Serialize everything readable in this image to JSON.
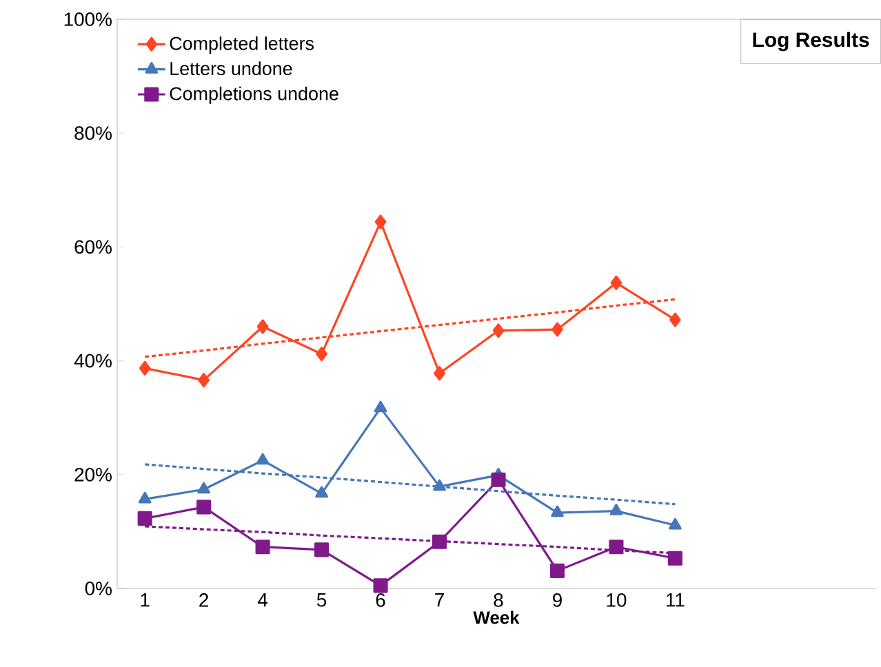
{
  "chart_data": {
    "type": "line",
    "title": "Log Results",
    "xlabel": "Week",
    "categories": [
      "1",
      "2",
      "4",
      "5",
      "6",
      "7",
      "8",
      "9",
      "10",
      "11"
    ],
    "ylim": [
      0,
      100
    ],
    "yticks": [
      {
        "value": 0,
        "label": "0%"
      },
      {
        "value": 20,
        "label": "20%"
      },
      {
        "value": 40,
        "label": "40%"
      },
      {
        "value": 60,
        "label": "60%"
      },
      {
        "value": 80,
        "label": "80%"
      },
      {
        "value": 100,
        "label": "100%"
      }
    ],
    "legend": "top left",
    "series": [
      {
        "name": "Completed letters",
        "color": "#ff4422",
        "marker": "diamond",
        "values": [
          38.7,
          36.6,
          46.0,
          41.2,
          64.4,
          37.8,
          45.3,
          45.5,
          53.7,
          47.2
        ]
      },
      {
        "name": "Letters undone",
        "color": "#4677b8",
        "marker": "triangle",
        "values": [
          15.7,
          17.4,
          22.5,
          16.7,
          31.7,
          17.9,
          19.9,
          13.3,
          13.6,
          11.1
        ]
      },
      {
        "name": "Completions undone",
        "color": "#801a8c",
        "marker": "square",
        "values": [
          12.3,
          14.3,
          7.3,
          6.8,
          0.5,
          8.2,
          19.1,
          3.1,
          7.3,
          5.3
        ]
      },
      {
        "color": "#ff4422",
        "marker": "none",
        "line_style": "dashed",
        "values": [
          40.7,
          41.8,
          43.0,
          44.1,
          45.2,
          46.3,
          47.4,
          48.5,
          49.7,
          50.8
        ]
      },
      {
        "color": "#4677b8",
        "marker": "none",
        "line_style": "dashed",
        "values": [
          21.8,
          21.0,
          20.2,
          19.5,
          18.7,
          17.9,
          17.1,
          16.3,
          15.6,
          14.8
        ]
      },
      {
        "color": "#801a8c",
        "marker": "none",
        "line_style": "dashed",
        "values": [
          10.9,
          10.4,
          9.9,
          9.3,
          8.8,
          8.3,
          7.8,
          7.3,
          6.7,
          6.2
        ]
      }
    ]
  }
}
